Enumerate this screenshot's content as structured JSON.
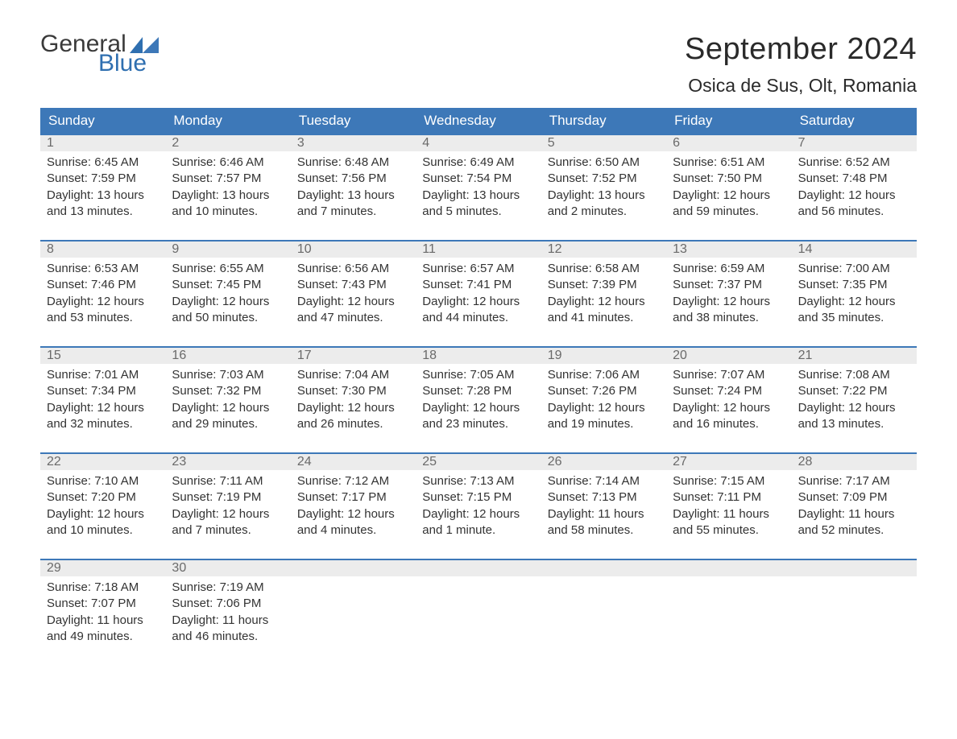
{
  "logo": {
    "text_general": "General",
    "text_blue": "Blue"
  },
  "title": "September 2024",
  "location": "Osica de Sus, Olt, Romania",
  "colors": {
    "header_bg": "#3d78b8",
    "header_text": "#ffffff",
    "daynum_bg": "#ececec",
    "daynum_text": "#6a6a6a",
    "body_text": "#333333",
    "logo_dark": "#3a3a3a",
    "logo_blue": "#2f6fb0",
    "rule": "#3d78b8"
  },
  "weekdays": [
    "Sunday",
    "Monday",
    "Tuesday",
    "Wednesday",
    "Thursday",
    "Friday",
    "Saturday"
  ],
  "weeks": [
    [
      {
        "n": "1",
        "sr": "6:45 AM",
        "ss": "7:59 PM",
        "dl": "13 hours and 13 minutes."
      },
      {
        "n": "2",
        "sr": "6:46 AM",
        "ss": "7:57 PM",
        "dl": "13 hours and 10 minutes."
      },
      {
        "n": "3",
        "sr": "6:48 AM",
        "ss": "7:56 PM",
        "dl": "13 hours and 7 minutes."
      },
      {
        "n": "4",
        "sr": "6:49 AM",
        "ss": "7:54 PM",
        "dl": "13 hours and 5 minutes."
      },
      {
        "n": "5",
        "sr": "6:50 AM",
        "ss": "7:52 PM",
        "dl": "13 hours and 2 minutes."
      },
      {
        "n": "6",
        "sr": "6:51 AM",
        "ss": "7:50 PM",
        "dl": "12 hours and 59 minutes."
      },
      {
        "n": "7",
        "sr": "6:52 AM",
        "ss": "7:48 PM",
        "dl": "12 hours and 56 minutes."
      }
    ],
    [
      {
        "n": "8",
        "sr": "6:53 AM",
        "ss": "7:46 PM",
        "dl": "12 hours and 53 minutes."
      },
      {
        "n": "9",
        "sr": "6:55 AM",
        "ss": "7:45 PM",
        "dl": "12 hours and 50 minutes."
      },
      {
        "n": "10",
        "sr": "6:56 AM",
        "ss": "7:43 PM",
        "dl": "12 hours and 47 minutes."
      },
      {
        "n": "11",
        "sr": "6:57 AM",
        "ss": "7:41 PM",
        "dl": "12 hours and 44 minutes."
      },
      {
        "n": "12",
        "sr": "6:58 AM",
        "ss": "7:39 PM",
        "dl": "12 hours and 41 minutes."
      },
      {
        "n": "13",
        "sr": "6:59 AM",
        "ss": "7:37 PM",
        "dl": "12 hours and 38 minutes."
      },
      {
        "n": "14",
        "sr": "7:00 AM",
        "ss": "7:35 PM",
        "dl": "12 hours and 35 minutes."
      }
    ],
    [
      {
        "n": "15",
        "sr": "7:01 AM",
        "ss": "7:34 PM",
        "dl": "12 hours and 32 minutes."
      },
      {
        "n": "16",
        "sr": "7:03 AM",
        "ss": "7:32 PM",
        "dl": "12 hours and 29 minutes."
      },
      {
        "n": "17",
        "sr": "7:04 AM",
        "ss": "7:30 PM",
        "dl": "12 hours and 26 minutes."
      },
      {
        "n": "18",
        "sr": "7:05 AM",
        "ss": "7:28 PM",
        "dl": "12 hours and 23 minutes."
      },
      {
        "n": "19",
        "sr": "7:06 AM",
        "ss": "7:26 PM",
        "dl": "12 hours and 19 minutes."
      },
      {
        "n": "20",
        "sr": "7:07 AM",
        "ss": "7:24 PM",
        "dl": "12 hours and 16 minutes."
      },
      {
        "n": "21",
        "sr": "7:08 AM",
        "ss": "7:22 PM",
        "dl": "12 hours and 13 minutes."
      }
    ],
    [
      {
        "n": "22",
        "sr": "7:10 AM",
        "ss": "7:20 PM",
        "dl": "12 hours and 10 minutes."
      },
      {
        "n": "23",
        "sr": "7:11 AM",
        "ss": "7:19 PM",
        "dl": "12 hours and 7 minutes."
      },
      {
        "n": "24",
        "sr": "7:12 AM",
        "ss": "7:17 PM",
        "dl": "12 hours and 4 minutes."
      },
      {
        "n": "25",
        "sr": "7:13 AM",
        "ss": "7:15 PM",
        "dl": "12 hours and 1 minute."
      },
      {
        "n": "26",
        "sr": "7:14 AM",
        "ss": "7:13 PM",
        "dl": "11 hours and 58 minutes."
      },
      {
        "n": "27",
        "sr": "7:15 AM",
        "ss": "7:11 PM",
        "dl": "11 hours and 55 minutes."
      },
      {
        "n": "28",
        "sr": "7:17 AM",
        "ss": "7:09 PM",
        "dl": "11 hours and 52 minutes."
      }
    ],
    [
      {
        "n": "29",
        "sr": "7:18 AM",
        "ss": "7:07 PM",
        "dl": "11 hours and 49 minutes."
      },
      {
        "n": "30",
        "sr": "7:19 AM",
        "ss": "7:06 PM",
        "dl": "11 hours and 46 minutes."
      },
      null,
      null,
      null,
      null,
      null
    ]
  ],
  "labels": {
    "sunrise": "Sunrise: ",
    "sunset": "Sunset: ",
    "daylight": "Daylight: "
  }
}
